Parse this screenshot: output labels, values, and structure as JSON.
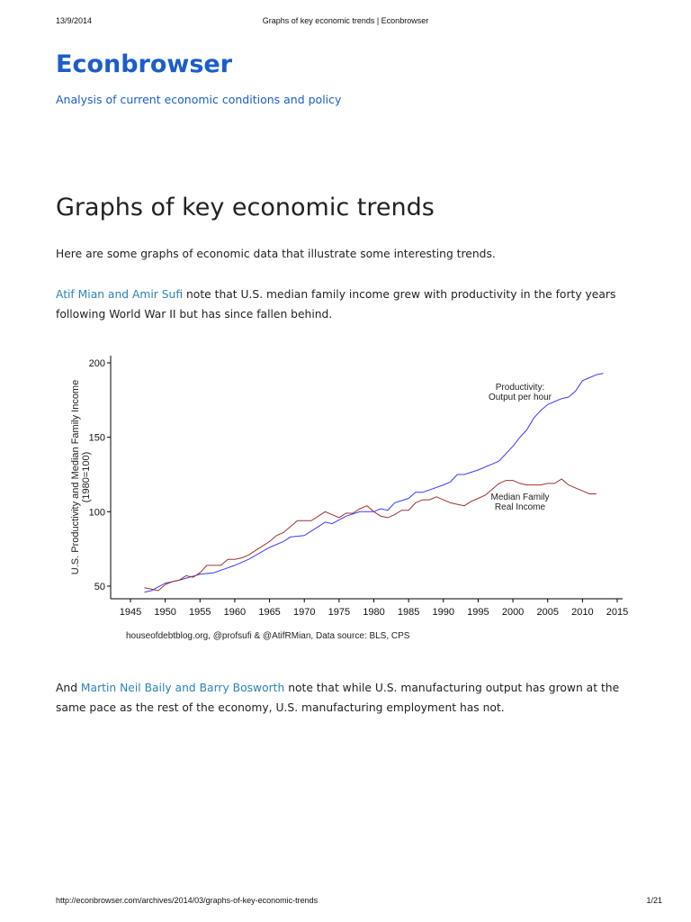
{
  "print_header": {
    "date": "13/9/2014",
    "title": "Graphs of key economic trends | Econbrowser"
  },
  "print_footer": {
    "url": "http://econbrowser.com/archives/2014/03/graphs-of-key-economic-trends",
    "page": "1/21"
  },
  "site": {
    "name": "Econbrowser",
    "tagline": "Analysis of current economic conditions and policy"
  },
  "post": {
    "title": "Graphs of key economic trends",
    "intro": "Here are some graphs of economic data that illustrate some interesting trends.",
    "p1_link": "Atif Mian and Amir Sufi",
    "p1_text": " note that U.S. median family income grew with productivity in the forty years following World War II but has since fallen behind.",
    "p2_pre": "And ",
    "p2_link": "Martin Neil Baily and Barry Bosworth",
    "p2_text": " note that while U.S. manufacturing output has grown at the same pace as the rest of the economy, U.S. manufacturing employment has not."
  },
  "colors": {
    "link": "#2a84b8",
    "brand": "#1b5ec9",
    "productivity": "#3a3aff",
    "income": "#a03030"
  },
  "chart_data": {
    "type": "line",
    "ylabel": "U.S. Productivity and Median Family Income",
    "ylabel2": "(1980=100)",
    "source": "houseofdebtblog.org, @profsufi & @AtifRMian, Data source: BLS, CPS",
    "xlim": [
      1945,
      2015
    ],
    "ylim": [
      45,
      203
    ],
    "xticks": [
      1945,
      1950,
      1955,
      1960,
      1965,
      1970,
      1975,
      1980,
      1985,
      1990,
      1995,
      2000,
      2005,
      2010,
      2015
    ],
    "yticks": [
      50,
      100,
      150,
      200
    ],
    "grid": false,
    "series": [
      {
        "name": "Productivity: Output per hour",
        "label_lines": [
          "Productivity:",
          "Output per hour"
        ],
        "color": "#3a3aff",
        "x": [
          1947,
          1948,
          1950,
          1952,
          1955,
          1957,
          1960,
          1962,
          1965,
          1967,
          1968,
          1970,
          1972,
          1973,
          1974,
          1976,
          1978,
          1980,
          1981,
          1982,
          1983,
          1985,
          1986,
          1987,
          1990,
          1991,
          1992,
          1993,
          1995,
          1997,
          1998,
          2000,
          2001,
          2002,
          2003,
          2004,
          2005,
          2006,
          2007,
          2008,
          2009,
          2010,
          2011,
          2012,
          2013
        ],
        "y": [
          46,
          47,
          52,
          54,
          58,
          59,
          64,
          68,
          76,
          80,
          83,
          84,
          90,
          93,
          92,
          97,
          100,
          100,
          102,
          101,
          106,
          109,
          113,
          113,
          118,
          120,
          125,
          125,
          128,
          132,
          134,
          144,
          150,
          155,
          163,
          168,
          172,
          174,
          176,
          177,
          181,
          188,
          190,
          192,
          193
        ]
      },
      {
        "name": "Median Family Real Income",
        "label_lines": [
          "Median Family",
          "Real Income"
        ],
        "color": "#a03030",
        "x": [
          1947,
          1948,
          1949,
          1950,
          1951,
          1952,
          1953,
          1954,
          1955,
          1956,
          1957,
          1958,
          1959,
          1960,
          1961,
          1962,
          1963,
          1964,
          1965,
          1966,
          1967,
          1968,
          1969,
          1970,
          1971,
          1972,
          1973,
          1974,
          1975,
          1976,
          1977,
          1978,
          1979,
          1980,
          1981,
          1982,
          1983,
          1984,
          1985,
          1986,
          1987,
          1988,
          1989,
          1990,
          1991,
          1992,
          1993,
          1994,
          1995,
          1996,
          1997,
          1998,
          1999,
          2000,
          2001,
          2002,
          2003,
          2004,
          2005,
          2006,
          2007,
          2008,
          2009,
          2010,
          2011,
          2012
        ],
        "y": [
          49,
          48,
          47,
          51,
          53,
          54,
          57,
          56,
          59,
          64,
          64,
          64,
          68,
          68,
          69,
          71,
          74,
          77,
          80,
          84,
          86,
          90,
          94,
          94,
          94,
          97,
          100,
          98,
          96,
          99,
          99,
          102,
          104,
          100,
          97,
          96,
          98,
          101,
          101,
          106,
          108,
          108,
          110,
          108,
          106,
          105,
          104,
          107,
          109,
          111,
          115,
          119,
          121,
          121,
          119,
          118,
          118,
          118,
          119,
          119,
          122,
          118,
          116,
          114,
          112,
          112
        ]
      }
    ]
  }
}
